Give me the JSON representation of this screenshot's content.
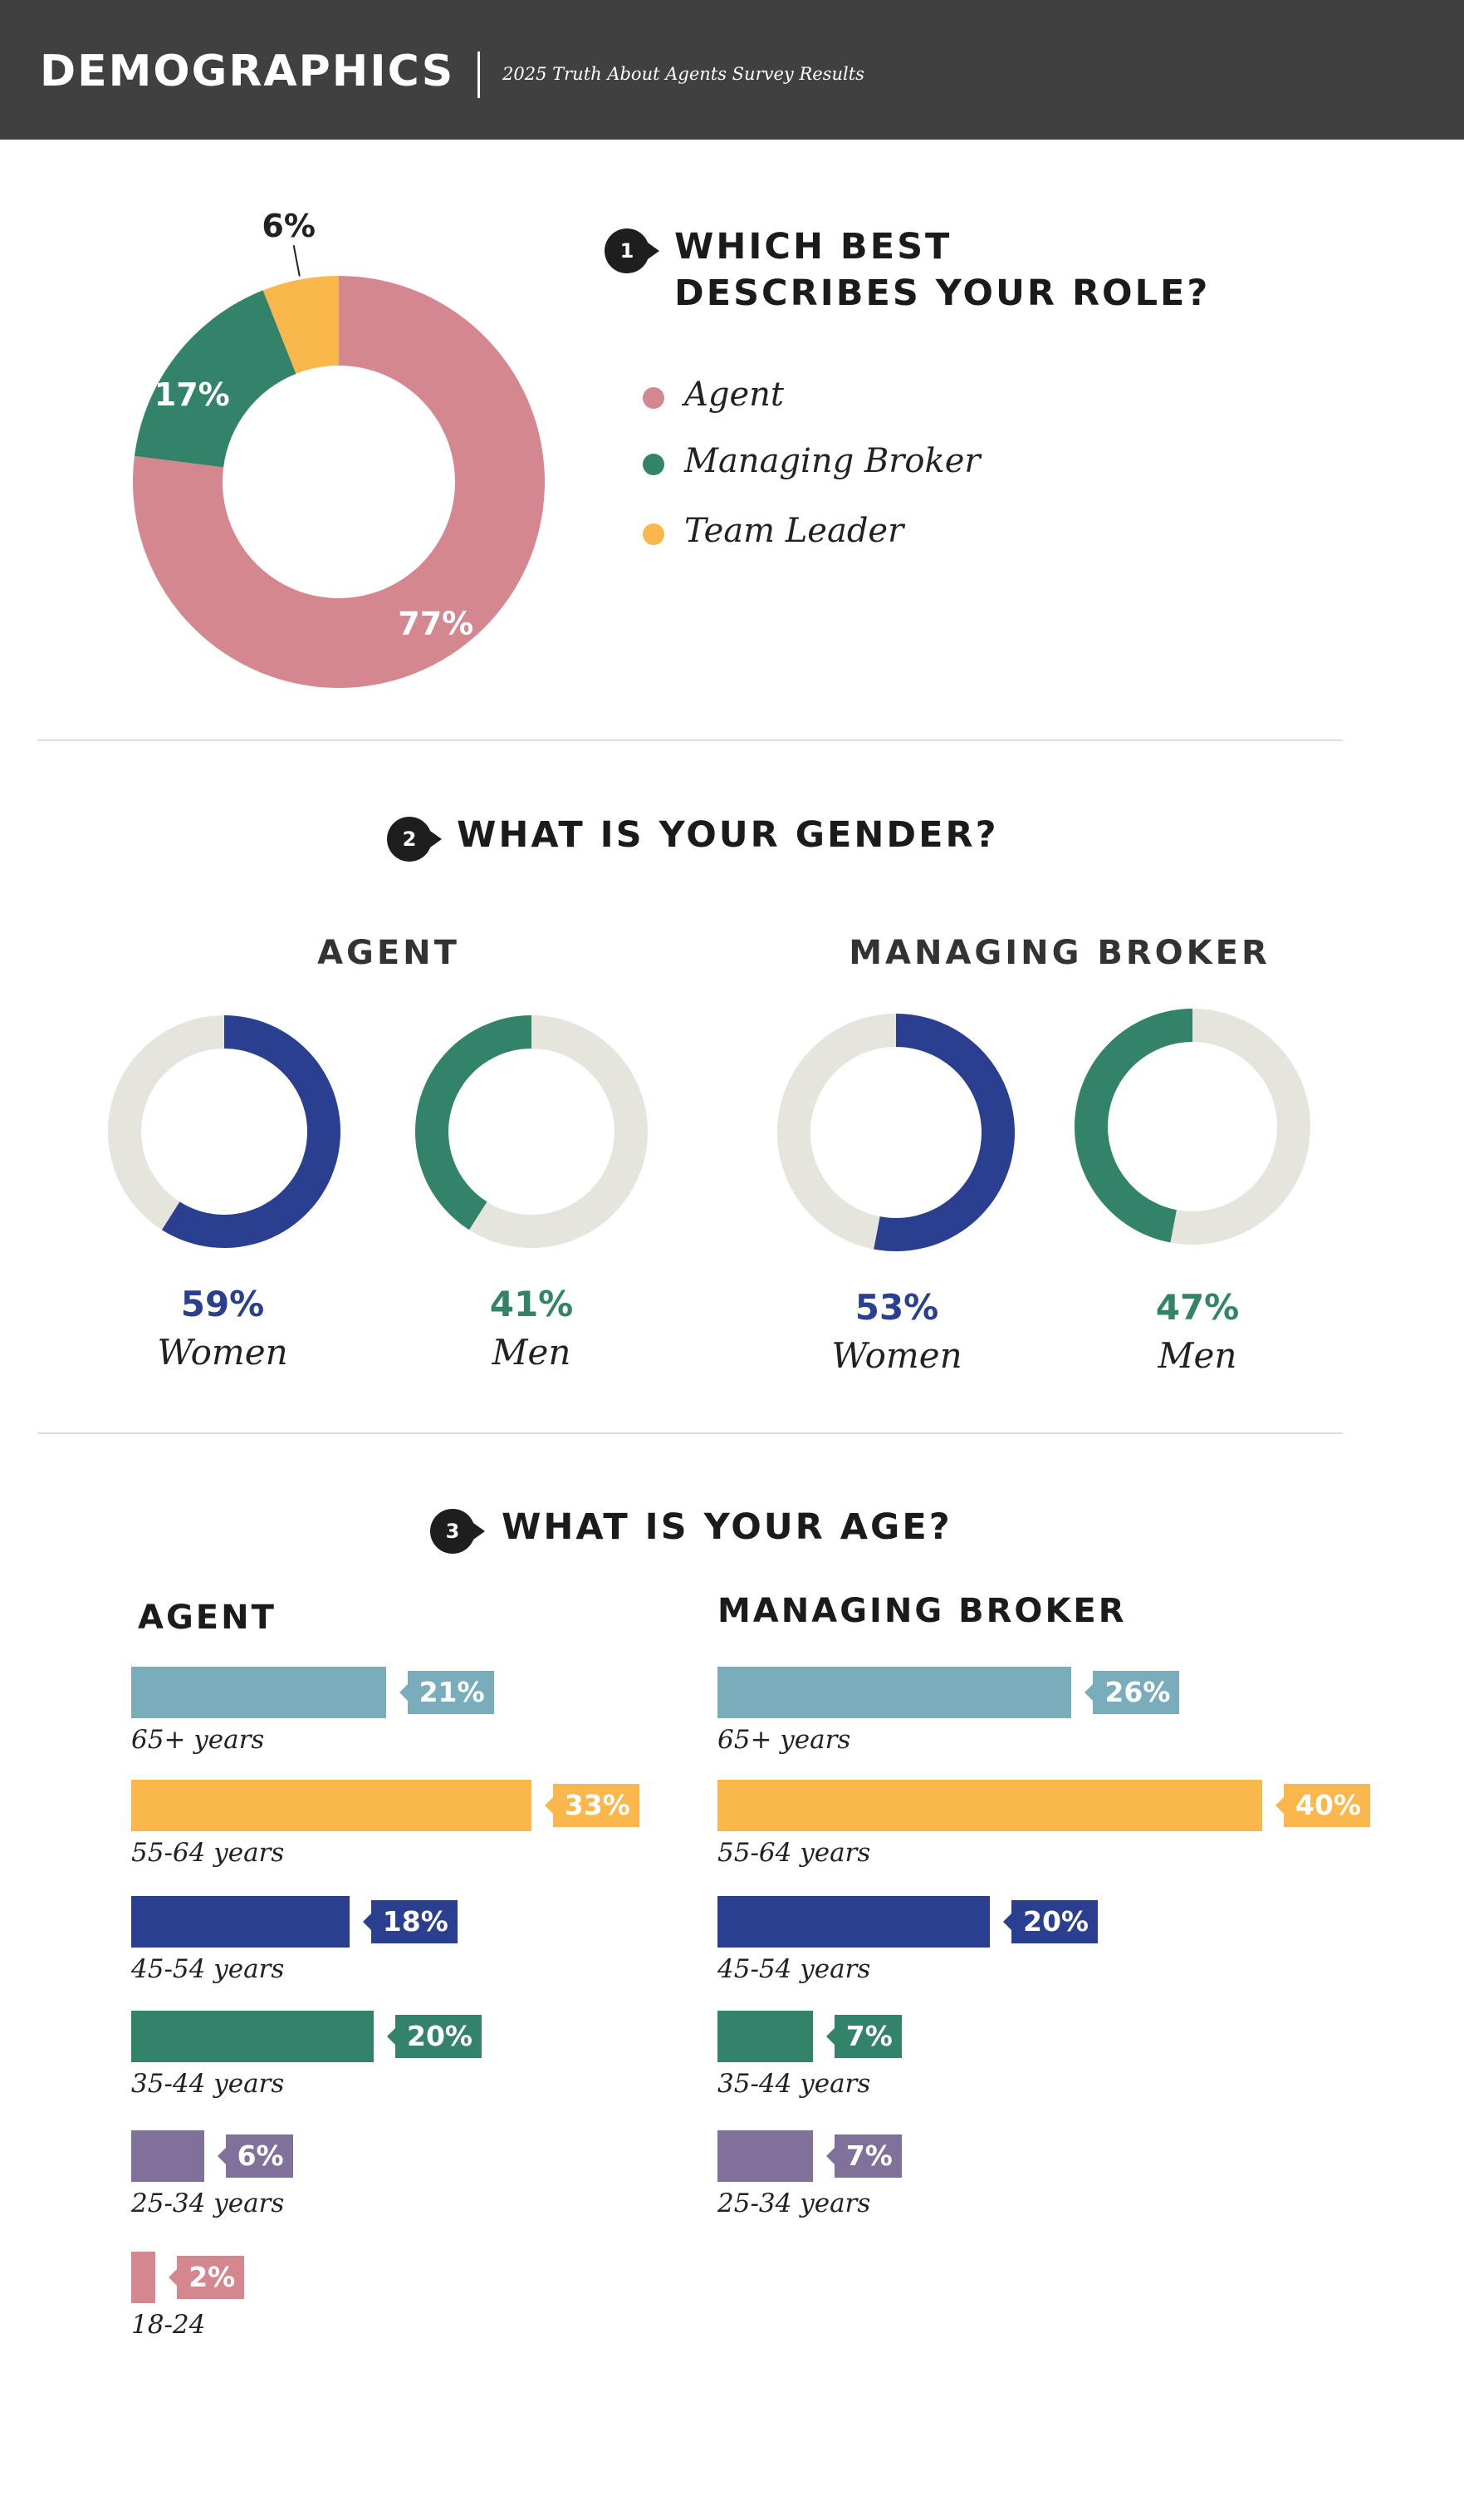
{
  "header": {
    "title": "DEMOGRAPHICS",
    "subtitle": "2025 Truth About Agents Survey Results"
  },
  "colors": {
    "agent": "#D4878F",
    "broker": "#33826A",
    "leader": "#F9B74C",
    "women": "#2A3F8F",
    "track": "#E5E4DD",
    "age_65": "#79ADBB",
    "age_55": "#F9B74C",
    "age_45": "#2A3F8F",
    "age_35": "#33826A",
    "age_25": "#80719B",
    "age_18": "#D4878F"
  },
  "q1": {
    "number": "1",
    "title_line1": "WHICH BEST",
    "title_line2": "DESCRIBES YOUR ROLE?"
  },
  "q2": {
    "number": "2",
    "title": "WHAT IS YOUR GENDER?"
  },
  "q3": {
    "number": "3",
    "title": "WHAT IS YOUR AGE?"
  },
  "chart_data": [
    {
      "type": "pie",
      "subtype": "donut",
      "labels": [
        "Agent",
        "Managing Broker",
        "Team Leader"
      ],
      "values": [
        77,
        17,
        6
      ],
      "value_labels": [
        "77%",
        "17%",
        "6%"
      ],
      "legend": [
        "Agent",
        "Managing Broker",
        "Team Leader"
      ],
      "legend_position": "right"
    },
    {
      "type": "pie",
      "subtype": "donut-pair",
      "group": "AGENT",
      "labels": [
        "Women",
        "Men"
      ],
      "values": [
        59,
        41
      ],
      "value_labels": [
        "59%",
        "41%"
      ]
    },
    {
      "type": "pie",
      "subtype": "donut-pair",
      "group": "MANAGING BROKER",
      "labels": [
        "Women",
        "Men"
      ],
      "values": [
        53,
        47
      ],
      "value_labels": [
        "53%",
        "47%"
      ]
    },
    {
      "type": "bar",
      "orientation": "horizontal",
      "group": "AGENT",
      "categories": [
        "65+ years",
        "55-64 years",
        "45-54 years",
        "35-44 years",
        "25-34 years",
        "18-24"
      ],
      "values": [
        21,
        33,
        18,
        20,
        6,
        2
      ],
      "value_labels": [
        "21%",
        "33%",
        "18%",
        "20%",
        "6%",
        "2%"
      ]
    },
    {
      "type": "bar",
      "orientation": "horizontal",
      "group": "MANAGING BROKER",
      "categories": [
        "65+ years",
        "55-64 years",
        "45-54 years",
        "35-44 years",
        "25-34 years"
      ],
      "values": [
        26,
        40,
        20,
        7,
        7
      ],
      "value_labels": [
        "26%",
        "40%",
        "20%",
        "7%",
        "7%"
      ]
    }
  ]
}
